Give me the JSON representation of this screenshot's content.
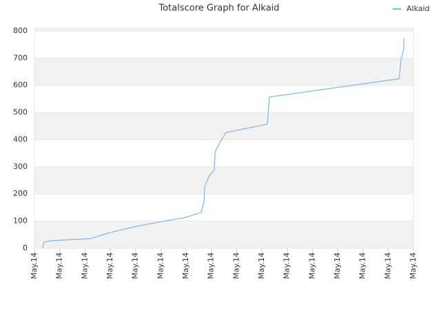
{
  "chart_data": {
    "type": "line",
    "title": "Totalscore Graph for Alkaid",
    "x": [
      0.33,
      0.38,
      0.68,
      1.77,
      2.24,
      3.0,
      3.95,
      4.91,
      6.0,
      6.6,
      6.71,
      6.74,
      6.9,
      7.12,
      7.15,
      7.36,
      7.58,
      9.22,
      9.3,
      14.43,
      14.51,
      14.62,
      14.62
    ],
    "series": [
      {
        "name": "Alkaid",
        "color": "#7cb5ec",
        "values": [
          0,
          23,
          28,
          33,
          36,
          58,
          79,
          96,
          114,
          132,
          173,
          228,
          264,
          289,
          355,
          393,
          426,
          457,
          557,
          624,
          695,
          736,
          774
        ]
      }
    ],
    "xlim": [
      0,
      15
    ],
    "xticks": [
      {
        "value": 0,
        "label": "May.14"
      },
      {
        "value": 1,
        "label": "May.14"
      },
      {
        "value": 2,
        "label": "May.14"
      },
      {
        "value": 3,
        "label": "May.14"
      },
      {
        "value": 4,
        "label": "May.14"
      },
      {
        "value": 5,
        "label": "May.14"
      },
      {
        "value": 6,
        "label": "May.14"
      },
      {
        "value": 7,
        "label": "May.14"
      },
      {
        "value": 8,
        "label": "May.14"
      },
      {
        "value": 9,
        "label": "May.14"
      },
      {
        "value": 10,
        "label": "May.14"
      },
      {
        "value": 11,
        "label": "May.14"
      },
      {
        "value": 12,
        "label": "May.14"
      },
      {
        "value": 13,
        "label": "May.14"
      },
      {
        "value": 14,
        "label": "May.14"
      },
      {
        "value": 15,
        "label": "May.14"
      }
    ],
    "ylim": [
      0,
      810
    ],
    "yticks": [
      0,
      100,
      200,
      300,
      400,
      500,
      600,
      700,
      800
    ],
    "grid_bands": true,
    "legend": "top-right"
  }
}
